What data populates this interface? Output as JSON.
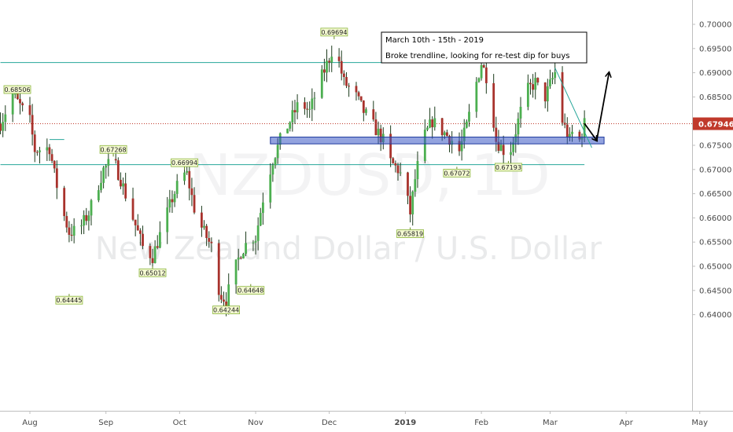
{
  "chart_data": {
    "type": "candlestick",
    "symbol_watermark": "NZDUSD, 1D",
    "name_watermark": "New Zealand Dollar / U.S. Dollar",
    "y_ticks": [
      "0.70000",
      "0.69500",
      "0.69000",
      "0.68500",
      "0.68000",
      "0.67500",
      "0.67000",
      "0.66500",
      "0.66000",
      "0.65500",
      "0.65000",
      "0.64500",
      "0.64000"
    ],
    "y_tick_values": [
      0.7,
      0.695,
      0.69,
      0.685,
      0.68,
      0.675,
      0.67,
      0.665,
      0.66,
      0.655,
      0.65,
      0.645,
      0.64
    ],
    "ylim": [
      0.6355,
      0.7035
    ],
    "x_ticks": [
      {
        "label": "Aug",
        "day": 0,
        "bold": false
      },
      {
        "label": "Sep",
        "day": 31,
        "bold": false
      },
      {
        "label": "Oct",
        "day": 61,
        "bold": false
      },
      {
        "label": "Nov",
        "day": 92,
        "bold": false
      },
      {
        "label": "Dec",
        "day": 122,
        "bold": false
      },
      {
        "label": "2019",
        "day": 153,
        "bold": true
      },
      {
        "label": "Feb",
        "day": 184,
        "bold": false
      },
      {
        "label": "Mar",
        "day": 212,
        "bold": false
      },
      {
        "label": "Apr",
        "day": 243,
        "bold": false
      },
      {
        "label": "May",
        "day": 273,
        "bold": false
      }
    ],
    "last_price": {
      "label": "0.67946",
      "value": 0.67946,
      "color": "#c0392b"
    },
    "price_path": [
      [
        -12,
        0.6795
      ],
      [
        -7,
        0.6855
      ],
      [
        0,
        0.68
      ],
      [
        2,
        0.674
      ],
      [
        8,
        0.6745
      ],
      [
        10,
        0.669
      ],
      [
        13,
        0.662
      ],
      [
        16,
        0.657
      ],
      [
        20,
        0.6575
      ],
      [
        24,
        0.661
      ],
      [
        30,
        0.67
      ],
      [
        34,
        0.672
      ],
      [
        37,
        0.668
      ],
      [
        42,
        0.66
      ],
      [
        46,
        0.654
      ],
      [
        50,
        0.652
      ],
      [
        54,
        0.658
      ],
      [
        58,
        0.664
      ],
      [
        62,
        0.669
      ],
      [
        64,
        0.669
      ],
      [
        67,
        0.662
      ],
      [
        70,
        0.658
      ],
      [
        74,
        0.654
      ],
      [
        76,
        0.647
      ],
      [
        78,
        0.644
      ],
      [
        80,
        0.643
      ],
      [
        82,
        0.647
      ],
      [
        86,
        0.653
      ],
      [
        90,
        0.656
      ],
      [
        92,
        0.656
      ],
      [
        95,
        0.664
      ],
      [
        99,
        0.672
      ],
      [
        102,
        0.676
      ],
      [
        106,
        0.68
      ],
      [
        110,
        0.684
      ],
      [
        114,
        0.682
      ],
      [
        118,
        0.688
      ],
      [
        122,
        0.693
      ],
      [
        124,
        0.696
      ],
      [
        128,
        0.688
      ],
      [
        132,
        0.686
      ],
      [
        136,
        0.682
      ],
      [
        140,
        0.679
      ],
      [
        144,
        0.676
      ],
      [
        146,
        0.672
      ],
      [
        150,
        0.67
      ],
      [
        152,
        0.668
      ],
      [
        155,
        0.661
      ],
      [
        157,
        0.668
      ],
      [
        160,
        0.676
      ],
      [
        164,
        0.68
      ],
      [
        168,
        0.678
      ],
      [
        172,
        0.676
      ],
      [
        174,
        0.672
      ],
      [
        178,
        0.679
      ],
      [
        182,
        0.688
      ],
      [
        184,
        0.692
      ],
      [
        187,
        0.688
      ],
      [
        190,
        0.676
      ],
      [
        193,
        0.674
      ],
      [
        195,
        0.6725
      ],
      [
        198,
        0.678
      ],
      [
        202,
        0.686
      ],
      [
        206,
        0.688
      ],
      [
        208,
        0.686
      ],
      [
        210,
        0.685
      ],
      [
        214,
        0.69
      ],
      [
        217,
        0.68
      ],
      [
        220,
        0.676
      ],
      [
        222,
        0.679
      ],
      [
        224,
        0.676
      ],
      [
        226,
        0.6795
      ]
    ],
    "markers": [
      {
        "label": "0.68506",
        "day": -7,
        "value": 0.68506,
        "pos": "above"
      },
      {
        "label": "0.67268",
        "day": 34,
        "value": 0.67268,
        "pos": "above"
      },
      {
        "label": "0.66994",
        "day": 63,
        "value": 0.66994,
        "pos": "above"
      },
      {
        "label": "0.69694",
        "day": 124,
        "value": 0.69694,
        "pos": "above"
      },
      {
        "label": "0.64445",
        "day": 16,
        "value": 0.64445,
        "pos": "below"
      },
      {
        "label": "0.65012",
        "day": 50,
        "value": 0.65012,
        "pos": "below"
      },
      {
        "label": "0.64244",
        "day": 80,
        "value": 0.64244,
        "pos": "below"
      },
      {
        "label": "0.64648",
        "day": 90,
        "value": 0.64648,
        "pos": "below"
      },
      {
        "label": "0.65819",
        "day": 155,
        "value": 0.65819,
        "pos": "below"
      },
      {
        "label": "0.67072",
        "day": 174,
        "value": 0.67072,
        "pos": "below"
      },
      {
        "label": "0.67193",
        "day": 195,
        "value": 0.67193,
        "pos": "below"
      }
    ],
    "horizontal_lines": [
      {
        "value": 0.6921,
        "day_start": -12,
        "day_end": 192,
        "color": "#26a69a"
      },
      {
        "value": 0.671,
        "day_start": -12,
        "day_end": 226,
        "color": "#26a69a"
      },
      {
        "value": 0.6762,
        "day_start": 8,
        "day_end": 14,
        "color": "#26a69a"
      }
    ],
    "trendline": {
      "from": [
        214,
        0.691
      ],
      "to": [
        229,
        0.6745
      ],
      "color": "#26a69a"
    },
    "support_zone": {
      "day_start": 98,
      "day_end": 234,
      "value_low": 0.6753,
      "value_high": 0.6767,
      "color": "#3a57c4"
    },
    "arrows": [
      {
        "from": [
          226,
          0.6795
        ],
        "to": [
          231,
          0.676
        ]
      },
      {
        "from": [
          231,
          0.676
        ],
        "to": [
          236,
          0.69
        ]
      }
    ],
    "annotation": {
      "lines": [
        "March 10th - 15th - 2019",
        "Broke trendline, looking for re-test dip for buys"
      ],
      "anchor_day": 171,
      "anchor_value": 0.7014
    },
    "colors": {
      "up": "#4caf50",
      "down": "#a8322c",
      "grid_text": "#4a4a4a"
    }
  }
}
